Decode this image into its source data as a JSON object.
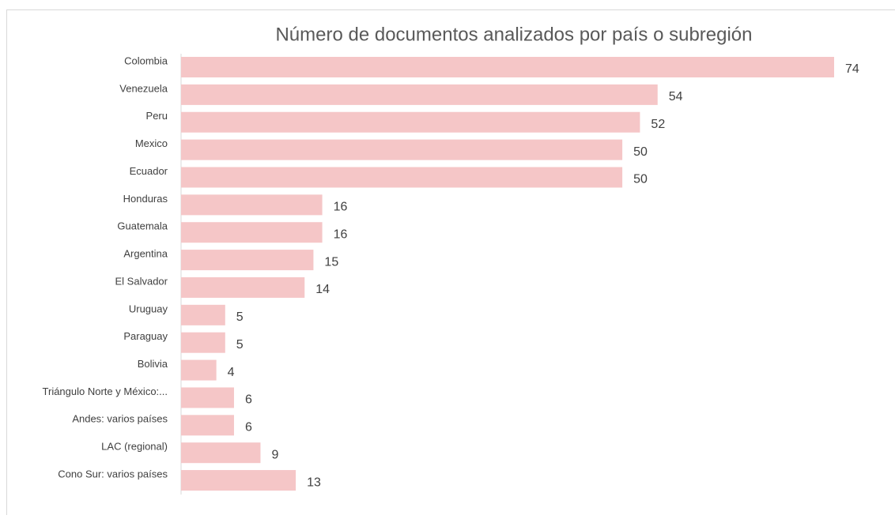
{
  "chart_data": {
    "type": "bar",
    "orientation": "horizontal",
    "title": "Número de documentos analizados por país o subregión",
    "categories": [
      "Colombia",
      "Venezuela",
      "Peru",
      "Mexico",
      "Ecuador",
      "Honduras",
      "Guatemala",
      "Argentina",
      "El Salvador",
      "Uruguay",
      "Paraguay",
      "Bolivia",
      "Triángulo Norte y México:...",
      "Andes: varios países",
      "LAC (regional)",
      "Cono Sur: varios países"
    ],
    "values": [
      74,
      54,
      52,
      50,
      50,
      16,
      16,
      15,
      14,
      5,
      5,
      4,
      6,
      6,
      9,
      13
    ],
    "color": "#f5c6c7"
  }
}
